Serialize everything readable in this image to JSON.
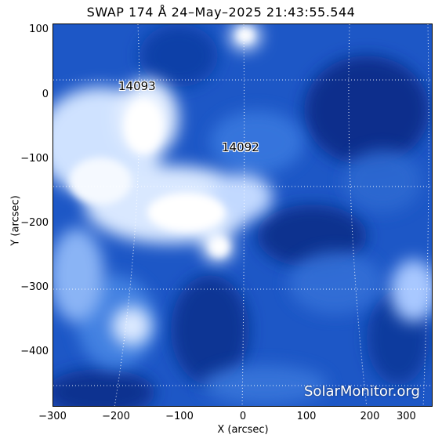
{
  "title": "SWAP 174 Å 24–May–2025 21:43:55.544",
  "axes": {
    "x_label": "X (arcsec)",
    "y_label": "Y (arcsec)",
    "x_ticks": [
      "−300",
      "−200",
      "−100",
      "0",
      "100",
      "200",
      "300"
    ],
    "y_ticks": [
      "100",
      "0",
      "−100",
      "−200",
      "−300",
      "−400"
    ]
  },
  "regions": [
    {
      "label": "14093"
    },
    {
      "label": "14092"
    }
  ],
  "watermark": "SolarMonitor.org",
  "colors": {
    "background": "#ffffff",
    "image_dark": "#0c2f8a",
    "image_mid": "#1b58c8",
    "image_bright": "#e9f2ff",
    "grid": "#ffffff"
  }
}
